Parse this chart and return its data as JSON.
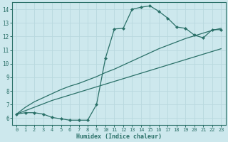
{
  "xlabel": "Humidex (Indice chaleur)",
  "xlim": [
    -0.5,
    23.5
  ],
  "ylim": [
    5.5,
    14.5
  ],
  "xticks": [
    0,
    1,
    2,
    3,
    4,
    5,
    6,
    7,
    8,
    9,
    10,
    11,
    12,
    13,
    14,
    15,
    16,
    17,
    18,
    19,
    20,
    21,
    22,
    23
  ],
  "yticks": [
    6,
    7,
    8,
    9,
    10,
    11,
    12,
    13,
    14
  ],
  "background_color": "#cde8ed",
  "grid_color": "#b8d8de",
  "line_color": "#2a7068",
  "line1_x": [
    0,
    1,
    2,
    3,
    4,
    5,
    6,
    7,
    8,
    9,
    10,
    11,
    12,
    13,
    14,
    15,
    16,
    17,
    18,
    19,
    20,
    21,
    22,
    23
  ],
  "line1_y": [
    6.3,
    6.4,
    6.4,
    6.3,
    6.05,
    5.95,
    5.85,
    5.85,
    5.85,
    7.0,
    10.4,
    12.55,
    12.6,
    14.0,
    14.15,
    14.25,
    13.85,
    13.35,
    12.7,
    12.6,
    12.1,
    11.9,
    12.5,
    12.5
  ],
  "line2_x": [
    0,
    1,
    2,
    3,
    4,
    5,
    6,
    7,
    8,
    9,
    10,
    11,
    12,
    13,
    14,
    15,
    16,
    17,
    18,
    19,
    20,
    21,
    22,
    23
  ],
  "line2_y": [
    6.3,
    6.8,
    7.2,
    7.5,
    7.8,
    8.1,
    8.35,
    8.55,
    8.8,
    9.05,
    9.35,
    9.6,
    9.9,
    10.2,
    10.5,
    10.8,
    11.1,
    11.35,
    11.6,
    11.85,
    12.05,
    12.25,
    12.45,
    12.6
  ],
  "line3_x": [
    0,
    1,
    2,
    3,
    4,
    5,
    6,
    7,
    8,
    9,
    10,
    11,
    12,
    13,
    14,
    15,
    16,
    17,
    18,
    19,
    20,
    21,
    22,
    23
  ],
  "line3_y": [
    6.3,
    6.55,
    6.8,
    7.05,
    7.3,
    7.5,
    7.7,
    7.9,
    8.1,
    8.3,
    8.5,
    8.7,
    8.9,
    9.1,
    9.3,
    9.5,
    9.7,
    9.9,
    10.1,
    10.3,
    10.5,
    10.7,
    10.9,
    11.1
  ]
}
